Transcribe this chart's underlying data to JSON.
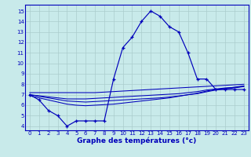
{
  "xlabel": "Graphe des températures (°c)",
  "bg_color": "#c8eaea",
  "line_color": "#0000bb",
  "grid_color": "#aacccc",
  "x_ticks": [
    0,
    1,
    2,
    3,
    4,
    5,
    6,
    7,
    8,
    9,
    10,
    11,
    12,
    13,
    14,
    15,
    16,
    17,
    18,
    19,
    20,
    21,
    22,
    23
  ],
  "y_ticks": [
    4,
    5,
    6,
    7,
    8,
    9,
    10,
    11,
    12,
    13,
    14,
    15
  ],
  "ylim": [
    3.6,
    15.6
  ],
  "xlim": [
    -0.5,
    23.5
  ],
  "series": {
    "actual": [
      7.0,
      6.5,
      5.5,
      5.0,
      4.0,
      4.5,
      4.5,
      4.5,
      4.5,
      8.5,
      11.5,
      12.5,
      14.0,
      15.0,
      14.5,
      13.5,
      13.0,
      11.0,
      8.5,
      8.5,
      7.5,
      7.5,
      7.5,
      7.5
    ],
    "line1": [
      7.2,
      7.2,
      7.2,
      7.2,
      7.2,
      7.2,
      7.2,
      7.2,
      7.25,
      7.3,
      7.35,
      7.4,
      7.45,
      7.5,
      7.55,
      7.6,
      7.65,
      7.7,
      7.75,
      7.8,
      7.85,
      7.9,
      7.95,
      8.0
    ],
    "line2": [
      7.0,
      6.9,
      6.8,
      6.7,
      6.6,
      6.6,
      6.6,
      6.65,
      6.7,
      6.75,
      6.8,
      6.85,
      6.9,
      6.95,
      7.0,
      7.05,
      7.1,
      7.2,
      7.3,
      7.45,
      7.55,
      7.65,
      7.7,
      7.8
    ],
    "line3": [
      7.0,
      6.85,
      6.7,
      6.55,
      6.4,
      6.35,
      6.3,
      6.35,
      6.4,
      6.45,
      6.5,
      6.55,
      6.6,
      6.65,
      6.7,
      6.78,
      6.88,
      7.0,
      7.1,
      7.28,
      7.45,
      7.55,
      7.65,
      7.78
    ],
    "line4": [
      6.9,
      6.7,
      6.5,
      6.3,
      6.1,
      6.0,
      5.95,
      6.0,
      6.05,
      6.1,
      6.2,
      6.3,
      6.4,
      6.5,
      6.6,
      6.7,
      6.85,
      7.0,
      7.15,
      7.35,
      7.5,
      7.6,
      7.72,
      7.85
    ]
  }
}
